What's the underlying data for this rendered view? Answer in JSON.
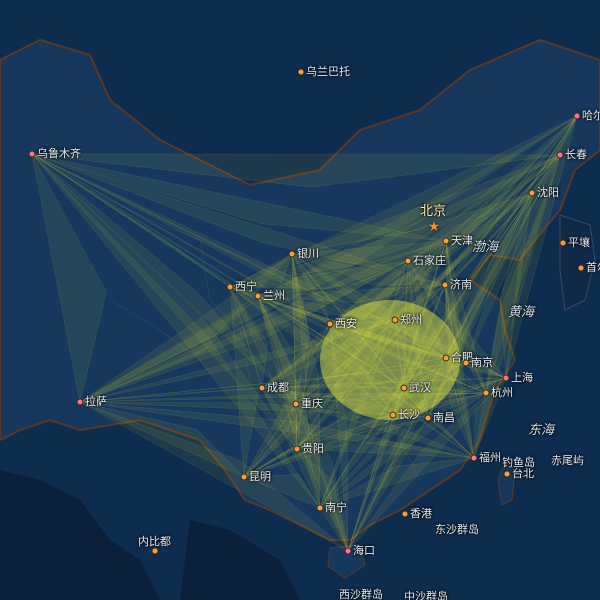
{
  "map": {
    "colors": {
      "sea": "#0d2d4f",
      "land": "#16385c",
      "foreign_land": "#0a1f38",
      "border": "#5a3a26",
      "flow": "#f6f63a"
    },
    "capital": {
      "name": "北京",
      "icon": "star-icon"
    },
    "cities": [
      {
        "id": "urumqi",
        "name": "乌鲁木齐",
        "hub": true
      },
      {
        "id": "lhasa",
        "name": "拉萨",
        "hub": true
      },
      {
        "id": "harbin",
        "name": "哈尔",
        "hub": true
      },
      {
        "id": "changchun",
        "name": "长春",
        "hub": true
      },
      {
        "id": "shenyang",
        "name": "沈阳"
      },
      {
        "id": "tianjin",
        "name": "天津"
      },
      {
        "id": "shijiazhuang",
        "name": "石家庄"
      },
      {
        "id": "jinan",
        "name": "济南"
      },
      {
        "id": "yinchuan",
        "name": "银川"
      },
      {
        "id": "xining",
        "name": "西宁"
      },
      {
        "id": "lanzhou",
        "name": "兰州"
      },
      {
        "id": "xian",
        "name": "西安"
      },
      {
        "id": "zhengzhou",
        "name": "郑州"
      },
      {
        "id": "hefei",
        "name": "合肥"
      },
      {
        "id": "nanjing",
        "name": "南京"
      },
      {
        "id": "shanghai",
        "name": "上海",
        "hub": true
      },
      {
        "id": "hangzhou",
        "name": "杭州"
      },
      {
        "id": "wuhan",
        "name": "武汉"
      },
      {
        "id": "chengdu",
        "name": "成都"
      },
      {
        "id": "chongqing",
        "name": "重庆"
      },
      {
        "id": "changsha",
        "name": "长沙"
      },
      {
        "id": "nanchang",
        "name": "南昌"
      },
      {
        "id": "fuzhou",
        "name": "福州",
        "hub": true
      },
      {
        "id": "guiyang",
        "name": "贵阳"
      },
      {
        "id": "kunming",
        "name": "昆明"
      },
      {
        "id": "nanning",
        "name": "南宁"
      },
      {
        "id": "hongkong",
        "name": "香港"
      },
      {
        "id": "haikou",
        "name": "海口",
        "hub": true
      },
      {
        "id": "ulaanbaatar",
        "name": "乌兰巴托"
      },
      {
        "id": "pyongyang",
        "name": "平壤"
      },
      {
        "id": "seoul",
        "name": "首尔"
      },
      {
        "id": "taipei",
        "name": "台北"
      }
    ],
    "places": {
      "diaoyu": "钓鱼岛",
      "chiwei": "赤尾屿",
      "dongsha": "东沙群岛",
      "xisha": "西沙群岛",
      "zhongsha": "中沙群岛",
      "nabidu": "内比都"
    },
    "seas": {
      "bohai": "渤海",
      "huanghai": "黄海",
      "donghai": "东海"
    }
  }
}
